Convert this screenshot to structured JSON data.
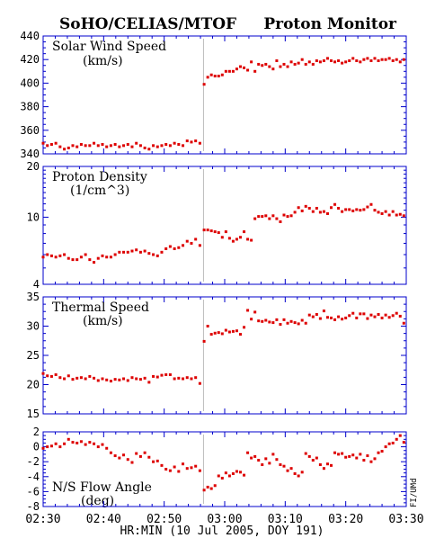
{
  "header": {
    "left_title": "SoHO/CELIAS/MTOF",
    "right_title": "Proton Monitor"
  },
  "xaxis": {
    "label": "HR:MIN (10 Jul 2005, DOY 191)",
    "range_min": [
      0,
      60
    ],
    "ticks": [
      {
        "min": 0,
        "label": "02:30"
      },
      {
        "min": 10,
        "label": "02:40"
      },
      {
        "min": 20,
        "label": "02:50"
      },
      {
        "min": 30,
        "label": "03:00"
      },
      {
        "min": 40,
        "label": "03:10"
      },
      {
        "min": 50,
        "label": "03:20"
      },
      {
        "min": 60,
        "label": "03:30"
      }
    ]
  },
  "credit": "FI/UMd",
  "colors": {
    "data": "#dd0000",
    "axes": "#0000cc",
    "marker": "#bbbbbb",
    "text": "#000000"
  },
  "marker_minute": 26.5,
  "chart_data": [
    {
      "type": "scatter",
      "title": "Solar Wind Speed",
      "units": "(km/s)",
      "ylim": [
        340,
        440
      ],
      "yticks": [
        340,
        360,
        380,
        400,
        420,
        440
      ],
      "scale": "linear",
      "grid": false,
      "x": [
        0,
        0.7,
        1.4,
        2.1,
        2.8,
        3.5,
        4.2,
        4.9,
        5.6,
        6.3,
        7,
        7.7,
        8.4,
        9.1,
        9.8,
        10.5,
        11.2,
        11.9,
        12.6,
        13.3,
        14,
        14.7,
        15.4,
        16.1,
        16.8,
        17.5,
        18.2,
        18.9,
        19.6,
        20.3,
        21,
        21.7,
        22.4,
        23.1,
        23.8,
        24.5,
        25.2,
        25.9,
        26.6,
        27.2,
        27.8,
        28.4,
        29,
        29.6,
        30.2,
        30.8,
        31.4,
        32,
        32.6,
        33.2,
        33.8,
        34.4,
        35,
        35.6,
        36.2,
        36.8,
        37.4,
        38,
        38.6,
        39.2,
        39.8,
        40.4,
        41,
        41.6,
        42.2,
        42.8,
        43.4,
        44,
        44.6,
        45.2,
        45.8,
        46.4,
        47,
        47.6,
        48.2,
        48.8,
        49.4,
        50,
        50.6,
        51.2,
        51.8,
        52.4,
        53,
        53.6,
        54.2,
        54.8,
        55.4,
        56,
        56.6,
        57.2,
        57.8,
        58.4,
        59,
        59.6
      ],
      "y": [
        349,
        347,
        348,
        349,
        346,
        344,
        345,
        347,
        346,
        348,
        347,
        347,
        349,
        347,
        348,
        346,
        347,
        348,
        346,
        347,
        348,
        346,
        349,
        347,
        345,
        344,
        347,
        346,
        347,
        348,
        347,
        349,
        348,
        347,
        351,
        350,
        351,
        349,
        399,
        405,
        407,
        406,
        406,
        407,
        410,
        410,
        410,
        412,
        414,
        413,
        411,
        418,
        410,
        416,
        415,
        416,
        414,
        412,
        419,
        414,
        416,
        414,
        418,
        416,
        417,
        420,
        416,
        418,
        416,
        419,
        418,
        419,
        421,
        419,
        418,
        419,
        417,
        418,
        419,
        421,
        419,
        418,
        420,
        421,
        419,
        421,
        419,
        420,
        420,
        421,
        419,
        420,
        418,
        420
      ]
    },
    {
      "type": "scatter",
      "title": "Proton Density",
      "units": "(1/cm^3)",
      "ylim": [
        4,
        20
      ],
      "yticks": [
        4,
        10,
        20
      ],
      "scale": "log",
      "grid": false,
      "x": [
        0,
        0.7,
        1.4,
        2.1,
        2.8,
        3.5,
        4.2,
        4.9,
        5.6,
        6.3,
        7,
        7.7,
        8.4,
        9.1,
        9.8,
        10.5,
        11.2,
        11.9,
        12.6,
        13.3,
        14,
        14.7,
        15.4,
        16.1,
        16.8,
        17.5,
        18.2,
        18.9,
        19.6,
        20.3,
        21,
        21.7,
        22.4,
        23.1,
        23.8,
        24.5,
        25.2,
        25.9,
        26.6,
        27.2,
        27.8,
        28.4,
        29,
        29.6,
        30.2,
        30.8,
        31.4,
        32,
        32.6,
        33.2,
        33.8,
        34.4,
        35,
        35.6,
        36.2,
        36.8,
        37.4,
        38,
        38.6,
        39.2,
        39.8,
        40.4,
        41,
        41.6,
        42.2,
        42.8,
        43.4,
        44,
        44.6,
        45.2,
        45.8,
        46.4,
        47,
        47.6,
        48.2,
        48.8,
        49.4,
        50,
        50.6,
        51.2,
        51.8,
        52.4,
        53,
        53.6,
        54.2,
        54.8,
        55.4,
        56,
        56.6,
        57.2,
        57.8,
        58.4,
        59,
        59.6
      ],
      "y": [
        5.8,
        6.0,
        5.9,
        5.8,
        5.9,
        6.0,
        5.7,
        5.6,
        5.6,
        5.8,
        6.0,
        5.6,
        5.4,
        5.7,
        5.9,
        5.8,
        5.8,
        6.0,
        6.2,
        6.2,
        6.2,
        6.3,
        6.4,
        6.2,
        6.3,
        6.1,
        6.0,
        5.9,
        6.2,
        6.5,
        6.7,
        6.5,
        6.6,
        6.8,
        7.2,
        7.0,
        7.4,
        6.8,
        8.4,
        8.4,
        8.3,
        8.2,
        8.1,
        7.6,
        8.2,
        7.5,
        7.2,
        7.4,
        7.6,
        8.2,
        7.4,
        7.3,
        9.8,
        10.1,
        10.1,
        10.2,
        9.8,
        10.2,
        9.8,
        9.4,
        10.3,
        10.1,
        10.2,
        10.7,
        11.4,
        10.9,
        11.6,
        11.3,
        10.8,
        11.3,
        10.7,
        10.8,
        10.5,
        11.4,
        11.9,
        11.3,
        10.8,
        11.1,
        11.1,
        10.9,
        11.1,
        11.0,
        11.1,
        11.5,
        11.9,
        11.0,
        10.7,
        10.5,
        10.8,
        10.3,
        10.8,
        10.3,
        10.4,
        10.2
      ]
    },
    {
      "type": "scatter",
      "title": "Thermal Speed",
      "units": "(km/s)",
      "ylim": [
        15,
        35
      ],
      "yticks": [
        15,
        20,
        25,
        30,
        35
      ],
      "scale": "linear",
      "grid": false,
      "x": [
        0,
        0.7,
        1.4,
        2.1,
        2.8,
        3.5,
        4.2,
        4.9,
        5.6,
        6.3,
        7,
        7.7,
        8.4,
        9.1,
        9.8,
        10.5,
        11.2,
        11.9,
        12.6,
        13.3,
        14,
        14.7,
        15.4,
        16.1,
        16.8,
        17.5,
        18.2,
        18.9,
        19.6,
        20.3,
        21,
        21.7,
        22.4,
        23.1,
        23.8,
        24.5,
        25.2,
        25.9,
        26.6,
        27.2,
        27.8,
        28.4,
        29,
        29.6,
        30.2,
        30.8,
        31.4,
        32,
        32.6,
        33.2,
        33.8,
        34.4,
        35,
        35.6,
        36.2,
        36.8,
        37.4,
        38,
        38.6,
        39.2,
        39.8,
        40.4,
        41,
        41.6,
        42.2,
        42.8,
        43.4,
        44,
        44.6,
        45.2,
        45.8,
        46.4,
        47,
        47.6,
        48.2,
        48.8,
        49.4,
        50,
        50.6,
        51.2,
        51.8,
        52.4,
        53,
        53.6,
        54.2,
        54.8,
        55.4,
        56,
        56.6,
        57.2,
        57.8,
        58.4,
        59,
        59.6
      ],
      "y": [
        21.9,
        21.5,
        21.4,
        21.7,
        21.2,
        21.0,
        21.5,
        20.9,
        21.1,
        21.2,
        21.0,
        21.4,
        21.1,
        20.7,
        21.0,
        20.8,
        20.6,
        20.9,
        20.8,
        21.0,
        20.7,
        21.2,
        21.0,
        20.9,
        21.1,
        20.4,
        21.4,
        21.3,
        21.6,
        21.7,
        21.7,
        21.0,
        21.1,
        21.0,
        21.2,
        21.0,
        21.2,
        20.2,
        27.4,
        30.0,
        28.6,
        28.8,
        28.9,
        28.7,
        29.3,
        29.0,
        29.1,
        29.2,
        28.6,
        29.8,
        32.7,
        31.2,
        32.4,
        30.9,
        30.8,
        31.0,
        30.7,
        30.6,
        31.1,
        30.3,
        31.1,
        30.5,
        30.8,
        30.6,
        30.4,
        31.0,
        30.5,
        31.9,
        31.6,
        32.0,
        31.3,
        32.6,
        31.5,
        31.4,
        31.1,
        31.6,
        31.2,
        31.4,
        31.8,
        32.2,
        31.4,
        32.1,
        32.1,
        31.3,
        31.9,
        31.6,
        32.0,
        31.4,
        31.9,
        31.5,
        31.8,
        32.2,
        31.7,
        30.5
      ]
    },
    {
      "type": "scatter",
      "title": "N/S Flow Angle",
      "units": "(deg)",
      "ylim": [
        -8,
        2
      ],
      "yticks": [
        -8,
        -6,
        -4,
        -2,
        0,
        2
      ],
      "scale": "linear",
      "grid": false,
      "x": [
        0,
        0.7,
        1.4,
        2.1,
        2.8,
        3.5,
        4.2,
        4.9,
        5.6,
        6.3,
        7,
        7.7,
        8.4,
        9.1,
        9.8,
        10.5,
        11.2,
        11.9,
        12.6,
        13.3,
        14,
        14.7,
        15.4,
        16.1,
        16.8,
        17.5,
        18.2,
        18.9,
        19.6,
        20.3,
        21,
        21.7,
        22.4,
        23.1,
        23.8,
        24.5,
        25.2,
        25.9,
        26.6,
        27.2,
        27.8,
        28.4,
        29,
        29.6,
        30.2,
        30.8,
        31.4,
        32,
        32.6,
        33.2,
        33.8,
        34.4,
        35,
        35.6,
        36.2,
        36.8,
        37.4,
        38,
        38.6,
        39.2,
        39.8,
        40.4,
        41,
        41.6,
        42.2,
        42.8,
        43.4,
        44,
        44.6,
        45.2,
        45.8,
        46.4,
        47,
        47.6,
        48.2,
        48.8,
        49.4,
        50,
        50.6,
        51.2,
        51.8,
        52.4,
        53,
        53.6,
        54.2,
        54.8,
        55.4,
        56,
        56.6,
        57.2,
        57.8,
        58.4,
        59,
        59.6
      ],
      "y": [
        -0.2,
        0.0,
        0.1,
        0.4,
        0.0,
        0.4,
        1.0,
        0.6,
        0.5,
        0.7,
        0.3,
        0.6,
        0.4,
        0.0,
        0.3,
        -0.2,
        -0.8,
        -1.2,
        -1.5,
        -1.1,
        -1.7,
        -2.1,
        -0.9,
        -1.3,
        -0.8,
        -1.4,
        -2.0,
        -1.9,
        -2.5,
        -3.0,
        -3.2,
        -2.7,
        -3.3,
        -2.3,
        -2.9,
        -2.8,
        -2.6,
        -3.2,
        -5.8,
        -5.4,
        -5.6,
        -5.2,
        -3.9,
        -4.2,
        -3.5,
        -3.9,
        -3.6,
        -3.3,
        -3.4,
        -3.8,
        -0.8,
        -1.5,
        -1.3,
        -1.8,
        -2.4,
        -1.6,
        -2.2,
        -1.0,
        -1.7,
        -2.4,
        -2.6,
        -3.2,
        -2.9,
        -3.6,
        -3.9,
        -3.4,
        -0.9,
        -1.3,
        -1.8,
        -1.5,
        -2.4,
        -2.9,
        -2.3,
        -2.5,
        -0.8,
        -1.0,
        -0.9,
        -1.4,
        -1.3,
        -1.1,
        -1.5,
        -1.0,
        -1.8,
        -1.2,
        -2.0,
        -1.6,
        -0.8,
        -0.6,
        0.0,
        0.4,
        0.5,
        1.0,
        1.5,
        0.6
      ]
    }
  ]
}
